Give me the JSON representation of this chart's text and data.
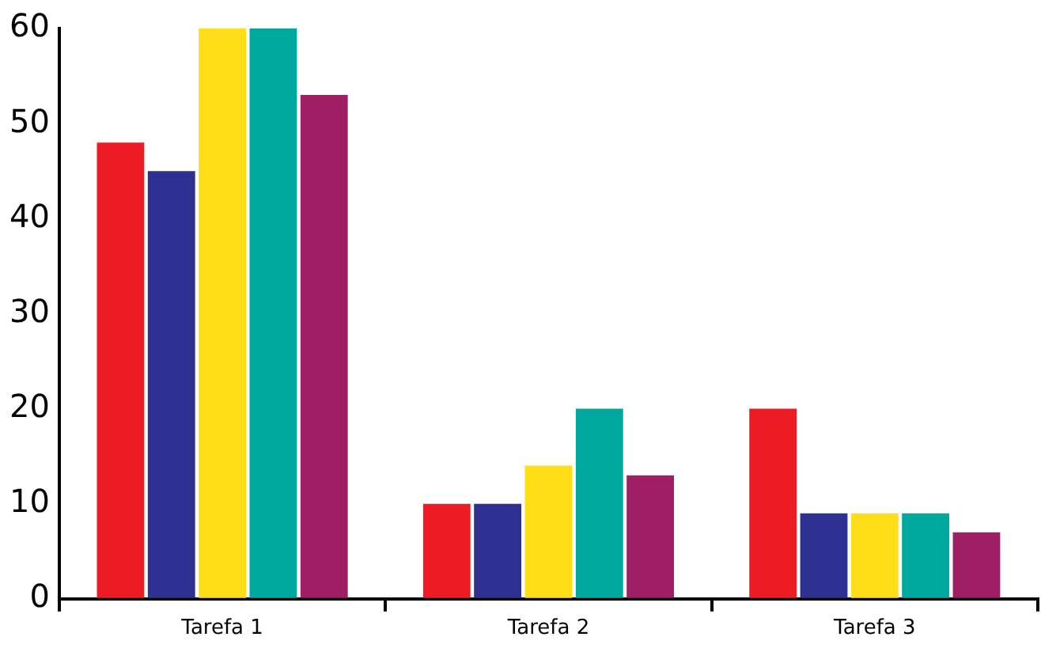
{
  "chart_data": {
    "type": "bar",
    "categories": [
      "Tarefa 1",
      "Tarefa 2",
      "Tarefa 3"
    ],
    "series": [
      {
        "color": "#ed1c24",
        "values": [
          48,
          10,
          20
        ]
      },
      {
        "color": "#2e3192",
        "values": [
          45,
          10,
          9
        ]
      },
      {
        "color": "#ffde17",
        "values": [
          60,
          14,
          9
        ]
      },
      {
        "color": "#00a99d",
        "values": [
          60,
          20,
          9
        ]
      },
      {
        "color": "#9e1f63",
        "values": [
          53,
          13,
          7
        ]
      }
    ],
    "ylim": [
      0,
      60
    ],
    "yticks": [
      0,
      10,
      20,
      30,
      40,
      50,
      60
    ],
    "grid": false,
    "legend": false
  }
}
